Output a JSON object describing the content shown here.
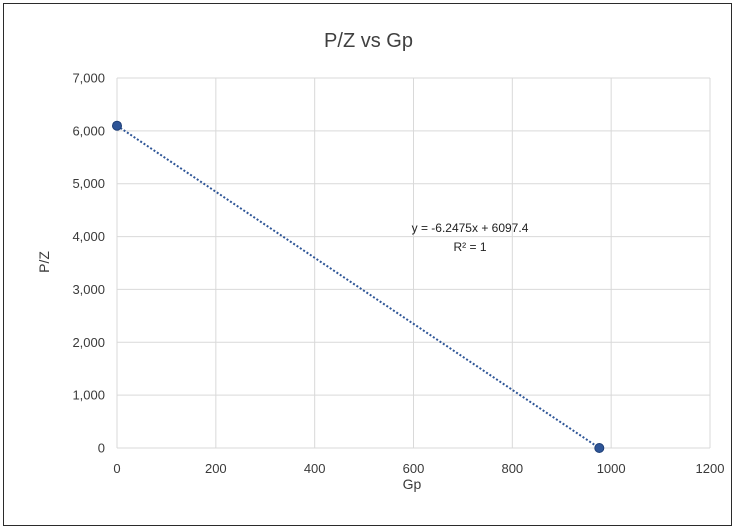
{
  "chart_data": {
    "type": "scatter",
    "title": "P/Z vs Gp",
    "xlabel": "Gp",
    "ylabel": "P/Z",
    "xlim": [
      0,
      1200
    ],
    "ylim": [
      0,
      7000
    ],
    "xticks": [
      0,
      200,
      400,
      600,
      800,
      1000,
      1200
    ],
    "xtick_labels": [
      "0",
      "200",
      "400",
      "600",
      "800",
      "1000",
      "1200"
    ],
    "yticks": [
      0,
      1000,
      2000,
      3000,
      4000,
      5000,
      6000,
      7000
    ],
    "ytick_labels": [
      "0",
      "1,000",
      "2,000",
      "3,000",
      "4,000",
      "5,000",
      "6,000",
      "7,000"
    ],
    "grid": true,
    "series": [
      {
        "points": [
          {
            "x": 0,
            "y": 6097.4
          },
          {
            "x": 976,
            "y": 0
          }
        ],
        "color": "#2e5597"
      }
    ],
    "trendline": {
      "type": "linear",
      "slope": -6.2475,
      "intercept": 6097.4,
      "style": "dotted",
      "color": "#2e5597",
      "equation_label": "y = -6.2475x + 6097.4",
      "r2_label": "R² = 1"
    }
  }
}
